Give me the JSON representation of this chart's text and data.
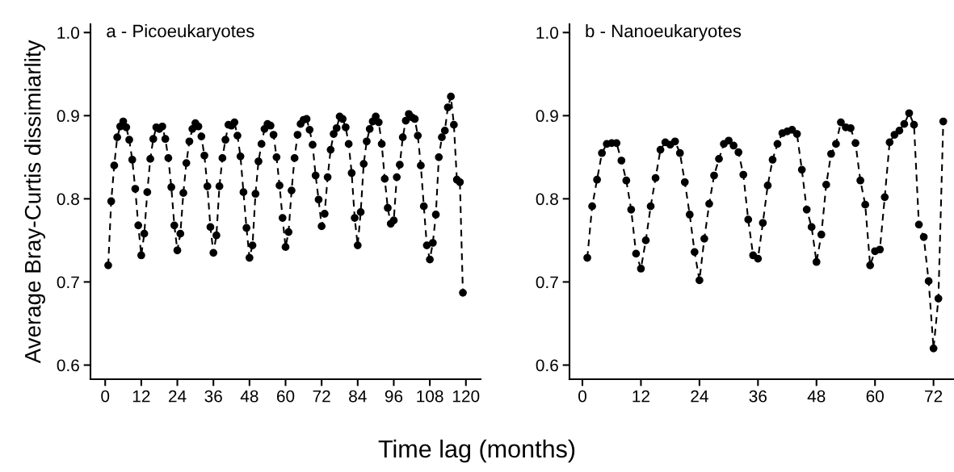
{
  "chart_data": [
    {
      "type": "line",
      "title": "a - Picoeukaryotes",
      "ylabel": "Average Bray-Curtis dissimiarlity",
      "xlabel": "Time lag (months)",
      "marker": "circle",
      "line_style": "dashed",
      "xlim": [
        -4.9,
        124.9
      ],
      "xticks": [
        0,
        12,
        24,
        36,
        48,
        60,
        72,
        84,
        96,
        108,
        120
      ],
      "ylim": [
        0.583,
        1.01
      ],
      "yticks": [
        0.6,
        0.7,
        0.8,
        0.9,
        {
          "value": 1,
          "label": "1.0"
        }
      ],
      "series": [
        {
          "color": "#000000",
          "x": [
            1,
            2,
            3,
            4,
            5,
            6,
            7,
            8,
            9,
            10,
            11,
            12,
            13,
            14,
            15,
            16,
            17,
            18,
            19,
            20,
            21,
            22,
            23,
            24,
            25,
            26,
            27,
            28,
            29,
            30,
            31,
            32,
            33,
            34,
            35,
            36,
            37,
            38,
            39,
            40,
            41,
            42,
            43,
            44,
            45,
            46,
            47,
            48,
            49,
            50,
            51,
            52,
            53,
            54,
            55,
            56,
            57,
            58,
            59,
            60,
            61,
            62,
            63,
            64,
            65,
            66,
            67,
            68,
            69,
            70,
            71,
            72,
            73,
            74,
            75,
            76,
            77,
            78,
            79,
            80,
            81,
            82,
            83,
            84,
            85,
            86,
            87,
            88,
            89,
            90,
            91,
            92,
            93,
            94,
            95,
            96,
            97,
            98,
            99,
            100,
            101,
            102,
            103,
            104,
            105,
            106,
            107,
            108,
            109,
            110,
            111,
            112,
            113,
            114,
            115,
            116,
            117,
            118,
            119
          ],
          "values": [
            0.72,
            0.797,
            0.84,
            0.874,
            0.887,
            0.893,
            0.886,
            0.871,
            0.847,
            0.812,
            0.768,
            0.732,
            0.758,
            0.808,
            0.848,
            0.872,
            0.886,
            0.884,
            0.887,
            0.872,
            0.849,
            0.814,
            0.768,
            0.738,
            0.758,
            0.807,
            0.843,
            0.869,
            0.884,
            0.891,
            0.887,
            0.875,
            0.852,
            0.815,
            0.766,
            0.735,
            0.756,
            0.815,
            0.849,
            0.871,
            0.889,
            0.888,
            0.892,
            0.876,
            0.851,
            0.808,
            0.765,
            0.729,
            0.744,
            0.806,
            0.845,
            0.866,
            0.884,
            0.89,
            0.888,
            0.877,
            0.85,
            0.816,
            0.777,
            0.742,
            0.76,
            0.81,
            0.849,
            0.877,
            0.89,
            0.895,
            0.896,
            0.883,
            0.865,
            0.828,
            0.799,
            0.767,
            0.782,
            0.826,
            0.859,
            0.878,
            0.885,
            0.899,
            0.896,
            0.886,
            0.866,
            0.831,
            0.777,
            0.744,
            0.784,
            0.842,
            0.869,
            0.884,
            0.893,
            0.899,
            0.892,
            0.866,
            0.824,
            0.789,
            0.77,
            0.774,
            0.826,
            0.841,
            0.874,
            0.894,
            0.902,
            0.898,
            0.896,
            0.876,
            0.84,
            0.791,
            0.744,
            0.727,
            0.747,
            0.781,
            0.85,
            0.874,
            0.882,
            0.91,
            0.923,
            0.889,
            0.823,
            0.82,
            0.687
          ]
        }
      ]
    },
    {
      "type": "line",
      "title": "b - Nanoeukaryotes",
      "marker": "circle",
      "line_style": "dashed",
      "xlim": [
        -2.65,
        76.2
      ],
      "xticks": [
        0,
        12,
        24,
        36,
        48,
        60,
        72
      ],
      "ylim": [
        0.583,
        1.01
      ],
      "yticks": [
        0.6,
        0.7,
        0.8,
        0.9,
        {
          "value": 1,
          "label": "1.0"
        }
      ],
      "series": [
        {
          "color": "#000000",
          "x": [
            1,
            2,
            3,
            4,
            5,
            6,
            7,
            8,
            9,
            10,
            11,
            12,
            13,
            14,
            15,
            16,
            17,
            18,
            19,
            20,
            21,
            22,
            23,
            24,
            25,
            26,
            27,
            28,
            29,
            30,
            31,
            32,
            33,
            34,
            35,
            36,
            37,
            38,
            39,
            40,
            41,
            42,
            43,
            44,
            45,
            46,
            47,
            48,
            49,
            50,
            51,
            52,
            53,
            54,
            55,
            56,
            57,
            58,
            59,
            60,
            61,
            62,
            63,
            64,
            65,
            66,
            67,
            68,
            69,
            70,
            71,
            72,
            73,
            74
          ],
          "values": [
            0.729,
            0.791,
            0.823,
            0.855,
            0.866,
            0.867,
            0.867,
            0.846,
            0.822,
            0.787,
            0.734,
            0.716,
            0.75,
            0.791,
            0.825,
            0.859,
            0.868,
            0.865,
            0.869,
            0.855,
            0.82,
            0.781,
            0.736,
            0.702,
            0.752,
            0.794,
            0.828,
            0.848,
            0.866,
            0.87,
            0.864,
            0.856,
            0.829,
            0.775,
            0.732,
            0.728,
            0.771,
            0.816,
            0.847,
            0.866,
            0.879,
            0.881,
            0.883,
            0.878,
            0.835,
            0.787,
            0.766,
            0.724,
            0.757,
            0.817,
            0.854,
            0.866,
            0.892,
            0.886,
            0.885,
            0.867,
            0.822,
            0.793,
            0.72,
            0.737,
            0.739,
            0.802,
            0.868,
            0.877,
            0.882,
            0.89,
            0.903,
            0.889,
            0.769,
            0.754,
            0.701,
            0.62,
            0.68,
            0.893
          ]
        }
      ]
    }
  ]
}
